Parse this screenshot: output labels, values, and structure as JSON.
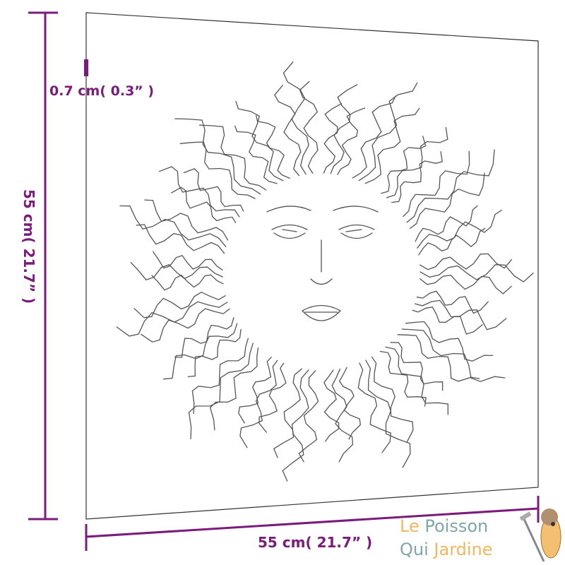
{
  "dimensions": {
    "thickness": "0.7 cm( 0.3” )",
    "height": "55 cm( 21.7” )",
    "width": "55 cm( 21.7” )"
  },
  "logo": {
    "word1": "Le",
    "word2": "Poisson",
    "word3": "Qui",
    "word4": "Jardine",
    "colors": {
      "orange": "#f0b860",
      "teal": "#7fa7aa"
    }
  },
  "colors": {
    "dimension": "#7b1b7b",
    "panel_outline": "#222222"
  }
}
